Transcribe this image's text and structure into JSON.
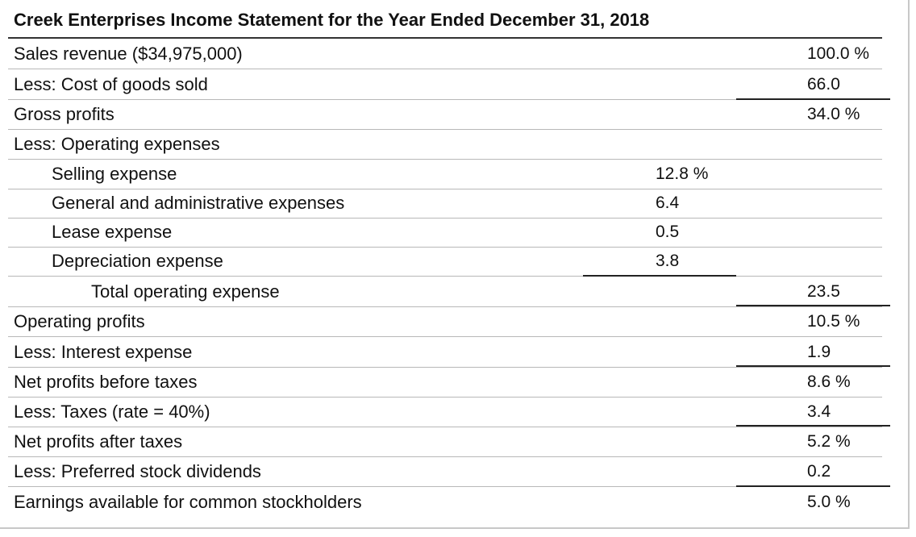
{
  "title": "Creek Enterprises Income Statement for the Year Ended December 31, 2018",
  "rows": [
    {
      "label": "Sales revenue ($34,975,000)",
      "a": "",
      "b": "100.0 %"
    },
    {
      "label": "Less: Cost of goods sold",
      "a": "",
      "b": "66.0"
    },
    {
      "label": "Gross profits",
      "a": "",
      "b": "34.0 %"
    },
    {
      "label": "Less: Operating expenses",
      "a": "",
      "b": ""
    },
    {
      "label": "Selling expense",
      "a": "12.8 %",
      "b": ""
    },
    {
      "label": "General and administrative expenses",
      "a": "6.4",
      "b": ""
    },
    {
      "label": "Lease expense",
      "a": "0.5",
      "b": ""
    },
    {
      "label": "Depreciation expense",
      "a": "3.8",
      "b": ""
    },
    {
      "label": "Total operating expense",
      "a": "",
      "b": "23.5"
    },
    {
      "label": "Operating profits",
      "a": "",
      "b": "10.5 %"
    },
    {
      "label": "Less: Interest expense",
      "a": "",
      "b": "1.9"
    },
    {
      "label": "Net profits before taxes",
      "a": "",
      "b": "8.6 %"
    },
    {
      "label": "Less: Taxes (rate = 40%)",
      "a": "",
      "b": "3.4"
    },
    {
      "label": "Net profits after taxes",
      "a": "",
      "b": "5.2 %"
    },
    {
      "label": "Less: Preferred stock dividends",
      "a": "",
      "b": "0.2"
    },
    {
      "label": "Earnings available for common stockholders",
      "a": "",
      "b": "5.0 %"
    }
  ]
}
